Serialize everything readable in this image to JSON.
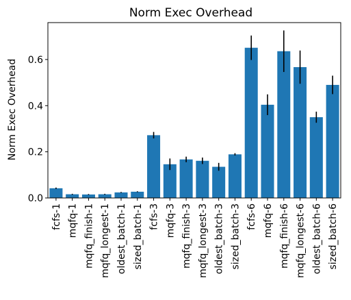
{
  "chart_data": {
    "type": "bar",
    "title": "Norm Exec Overhead",
    "xlabel": "",
    "ylabel": "Norm Exec Overhead",
    "ylim": [
      0,
      0.76
    ],
    "yticks": [
      0.0,
      0.2,
      0.4,
      0.6
    ],
    "ytick_labels": [
      "0.0",
      "0.2",
      "0.4",
      "0.6"
    ],
    "grid": false,
    "bar_color": "#1f77b4",
    "error_color": "#000000",
    "categories": [
      "fcfs-1",
      "mqfq-1",
      "mqfq_finish-1",
      "mqfq_longest-1",
      "oldest_batch-1",
      "sized_batch-1",
      "fcfs-3",
      "mqfq-3",
      "mqfq_finish-3",
      "mqfq_longest-3",
      "oldest_batch-3",
      "sized_batch-3",
      "fcfs-6",
      "mqfq-6",
      "mqfq_finish-6",
      "mqfq_longest-6",
      "oldest_batch-6",
      "sized_batch-6"
    ],
    "values": [
      0.042,
      0.016,
      0.015,
      0.016,
      0.024,
      0.027,
      0.272,
      0.146,
      0.167,
      0.161,
      0.135,
      0.189,
      0.651,
      0.404,
      0.636,
      0.567,
      0.35,
      0.49
    ],
    "errors": [
      0.003,
      0.002,
      0.002,
      0.002,
      0.002,
      0.002,
      0.014,
      0.025,
      0.012,
      0.014,
      0.017,
      0.005,
      0.053,
      0.045,
      0.09,
      0.072,
      0.024,
      0.04
    ]
  }
}
